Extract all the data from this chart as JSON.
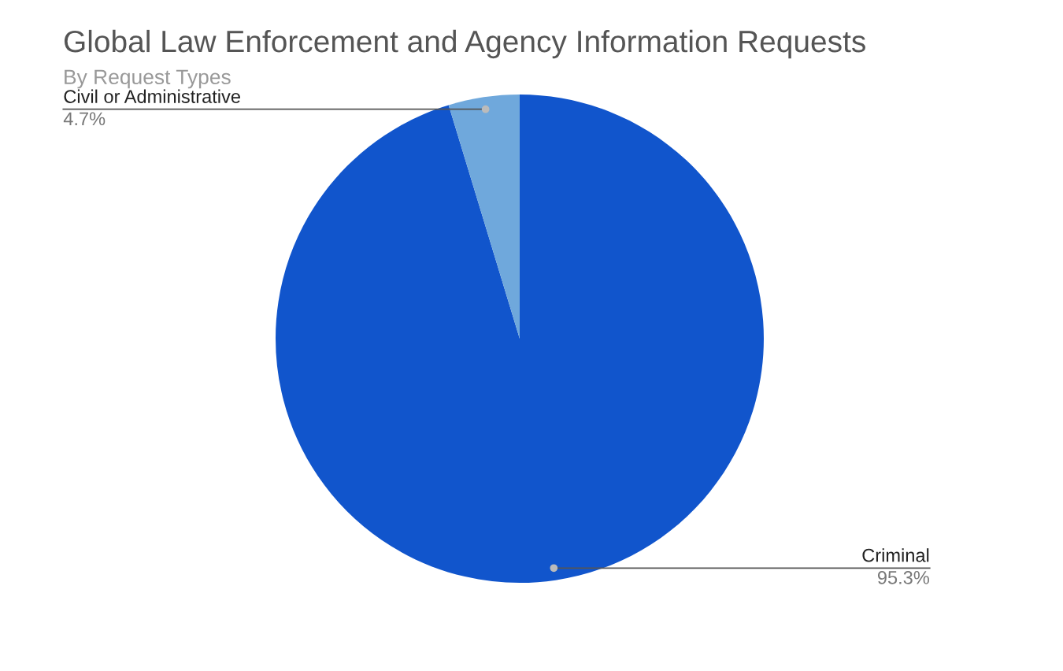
{
  "chart_data": {
    "type": "pie",
    "title": "Global Law Enforcement and Agency Information Requests",
    "subtitle": "By Request Types",
    "categories": [
      "Criminal",
      "Civil or Administrative"
    ],
    "values": [
      95.3,
      4.7
    ],
    "colors": [
      "#1155cc",
      "#6fa8dc"
    ],
    "value_labels": [
      "95.3%",
      "4.7%"
    ],
    "legend": false
  }
}
